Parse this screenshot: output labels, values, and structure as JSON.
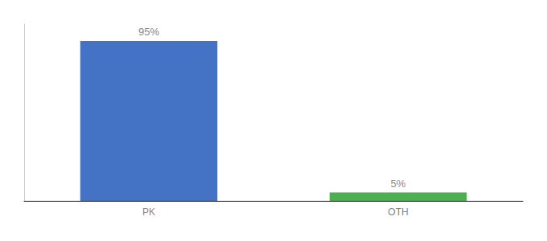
{
  "chart_data": {
    "type": "bar",
    "categories": [
      "PK",
      "OTH"
    ],
    "values": [
      95,
      5
    ],
    "value_labels": [
      "95%",
      "5%"
    ],
    "colors": [
      "#4472c4",
      "#4caf50"
    ],
    "ylim": [
      0,
      105
    ],
    "data_labels": true,
    "tick_labels": "x",
    "grid": false
  }
}
